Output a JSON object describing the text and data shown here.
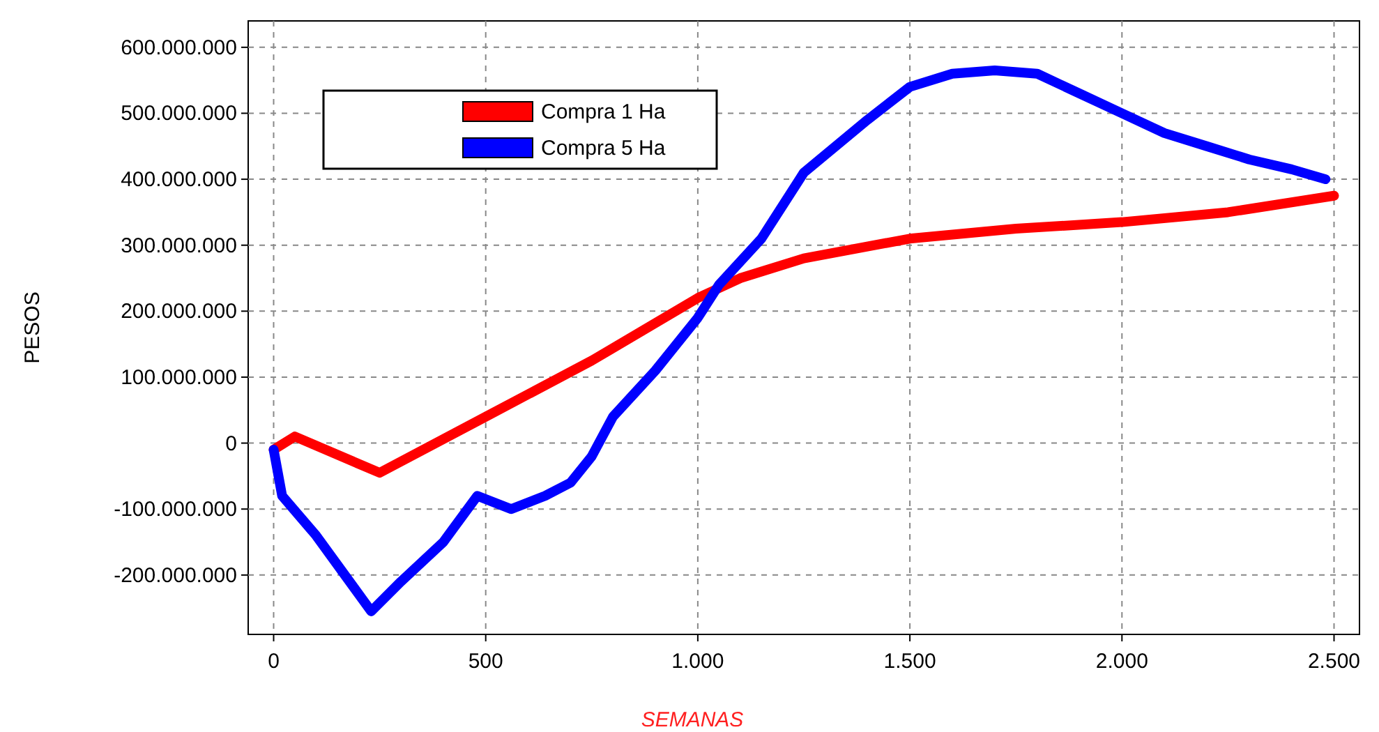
{
  "chart_data": {
    "type": "line",
    "xlabel": "SEMANAS",
    "ylabel": "PESOS",
    "xlim": [
      -60,
      2560
    ],
    "ylim": [
      -290000000,
      640000000
    ],
    "xticks": [
      0,
      500,
      {
        "value": 1000,
        "label": "1.000"
      },
      {
        "value": 1500,
        "label": "1.500"
      },
      {
        "value": 2000,
        "label": "2.000"
      },
      {
        "value": 2500,
        "label": "2.500"
      }
    ],
    "yticks": [
      {
        "value": -200000000,
        "label": "-200.000.000"
      },
      {
        "value": -100000000,
        "label": "-100.000.000"
      },
      0,
      {
        "value": 100000000,
        "label": "100.000.000"
      },
      {
        "value": 200000000,
        "label": "200.000.000"
      },
      {
        "value": 300000000,
        "label": "300.000.000"
      },
      {
        "value": 400000000,
        "label": "400.000.000"
      },
      {
        "value": 500000000,
        "label": "500.000.000"
      },
      {
        "value": 600000000,
        "label": "600.000.000"
      }
    ],
    "grid": true,
    "legend": "top left",
    "marker": "none",
    "line_style": "solid",
    "series": [
      {
        "name": "Compra 1 Ha",
        "color": "#ff0000",
        "x": [
          0,
          50,
          250,
          500,
          750,
          1000,
          1100,
          1250,
          1500,
          1750,
          2000,
          2250,
          2500
        ],
        "values": [
          -10000000,
          10000000,
          -45000000,
          40000000,
          125000000,
          220000000,
          250000000,
          280000000,
          310000000,
          325000000,
          335000000,
          350000000,
          375000000
        ]
      },
      {
        "name": "Compra 5 Ha",
        "color": "#0000ff",
        "x": [
          0,
          20,
          100,
          230,
          300,
          400,
          480,
          520,
          560,
          640,
          700,
          750,
          800,
          900,
          1000,
          1050,
          1150,
          1250,
          1400,
          1500,
          1600,
          1700,
          1800,
          1900,
          2000,
          2100,
          2200,
          2300,
          2400,
          2480
        ],
        "values": [
          -10000000,
          -80000000,
          -140000000,
          -255000000,
          -210000000,
          -150000000,
          -80000000,
          -90000000,
          -100000000,
          -80000000,
          -60000000,
          -20000000,
          40000000,
          110000000,
          190000000,
          240000000,
          310000000,
          410000000,
          490000000,
          540000000,
          560000000,
          565000000,
          560000000,
          530000000,
          500000000,
          470000000,
          450000000,
          430000000,
          415000000,
          400000000
        ]
      }
    ]
  }
}
